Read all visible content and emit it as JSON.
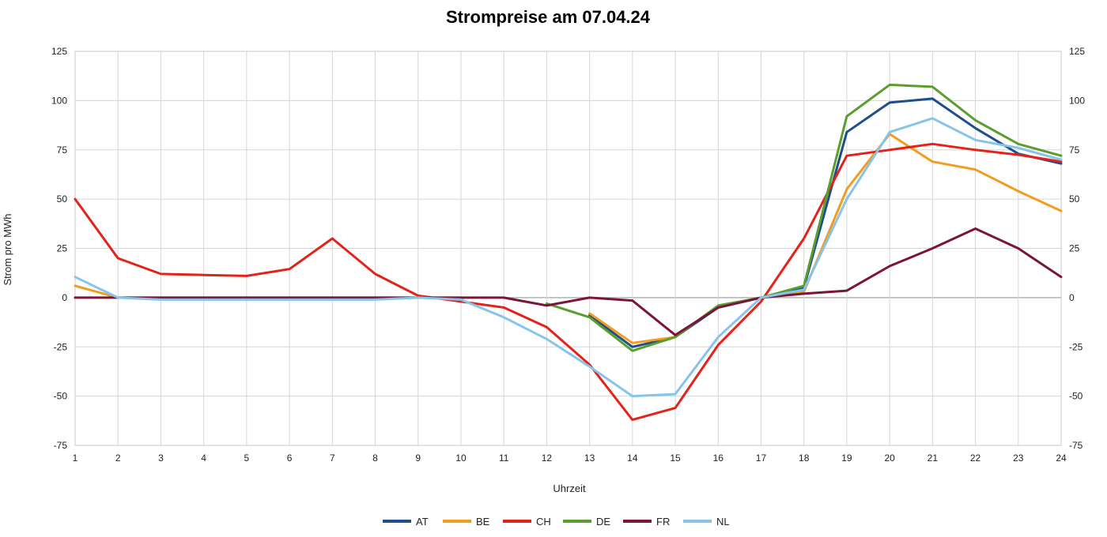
{
  "chart_data": {
    "type": "line",
    "title": "Strompreise am 07.04.24",
    "xlabel": "Uhrzeit",
    "ylabel": "Strom pro MWh",
    "x": [
      1,
      2,
      3,
      4,
      5,
      6,
      7,
      8,
      9,
      10,
      11,
      12,
      13,
      14,
      15,
      16,
      17,
      18,
      19,
      20,
      21,
      22,
      23,
      24
    ],
    "ylim": [
      -75,
      125
    ],
    "yticks": [
      -75,
      -50,
      -25,
      0,
      25,
      50,
      75,
      100,
      125
    ],
    "secondary_y_axis": true,
    "grid": true,
    "legend_position": "bottom",
    "series": [
      {
        "name": "AT",
        "color": "#1f4e8c",
        "values": [
          null,
          null,
          null,
          null,
          null,
          null,
          null,
          null,
          null,
          null,
          null,
          null,
          -9,
          -25,
          -20,
          -5,
          0,
          5,
          84,
          99,
          101,
          86,
          73,
          68
        ]
      },
      {
        "name": "BE",
        "color": "#f39c1f",
        "values": [
          6,
          0,
          0,
          0,
          0,
          0,
          0,
          0,
          0,
          0,
          null,
          null,
          -8,
          -23,
          -20,
          null,
          0,
          3,
          55,
          83,
          69,
          65,
          54,
          44
        ]
      },
      {
        "name": "CH",
        "color": "#e32219",
        "values": [
          50,
          20,
          12,
          11.5,
          11,
          14.5,
          30,
          12,
          1,
          -2,
          -5,
          -15,
          -34,
          -62,
          -56,
          -24,
          -2,
          30,
          72,
          75,
          78,
          75,
          72.5,
          69
        ]
      },
      {
        "name": "DE",
        "color": "#5a9e2f",
        "values": [
          null,
          null,
          null,
          null,
          null,
          null,
          null,
          null,
          null,
          null,
          null,
          -3,
          -10,
          -27,
          -20,
          -4,
          0,
          6,
          92,
          108,
          107,
          90,
          78,
          72
        ]
      },
      {
        "name": "FR",
        "color": "#7b1438",
        "values": [
          0,
          0,
          0,
          0,
          0,
          0,
          0,
          0,
          0,
          0,
          0,
          -4,
          0,
          -1.5,
          -19,
          -5,
          0,
          2,
          3.5,
          16,
          25,
          35,
          25,
          10.5
        ]
      },
      {
        "name": "NL",
        "color": "#87c4ea",
        "values": [
          10.5,
          0,
          -1,
          -1,
          -1,
          -1,
          -1,
          -1,
          0,
          -1,
          -10,
          -21,
          -35,
          -50,
          -49,
          -20,
          0,
          4,
          50,
          84,
          91,
          80,
          76,
          70
        ]
      }
    ]
  }
}
